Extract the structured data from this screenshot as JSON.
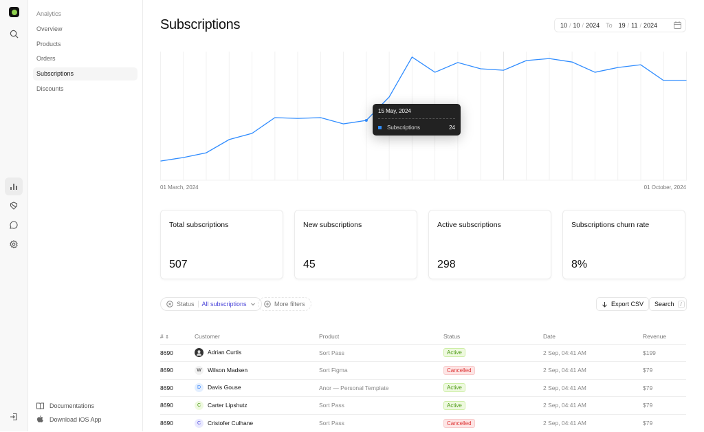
{
  "rail": {
    "icons": [
      "logo",
      "search-icon",
      "chart-icon",
      "badge-icon",
      "chat-icon",
      "gear-icon",
      "logout-icon"
    ]
  },
  "sidebar": {
    "section": "Analytics",
    "items": [
      {
        "label": "Overview"
      },
      {
        "label": "Products"
      },
      {
        "label": "Orders"
      },
      {
        "label": "Subscriptions",
        "active": true
      },
      {
        "label": "Discounts"
      }
    ],
    "footer": [
      {
        "label": "Documentations",
        "icon": "book-icon"
      },
      {
        "label": "Download iOS App",
        "icon": "apple-icon"
      }
    ]
  },
  "header": {
    "title": "Subscriptions",
    "date_from": {
      "d": "10",
      "m": "10",
      "y": "2024"
    },
    "to_label": "To",
    "date_to": {
      "d": "19",
      "m": "11",
      "y": "2024"
    }
  },
  "chart_data": {
    "type": "line",
    "x_start_label": "01 March, 2024",
    "x_end_label": "01 October, 2024",
    "grid": "vertical",
    "line_color": "#2f8cff",
    "series": [
      {
        "name": "Subscriptions",
        "values": [
          7.7,
          9.1,
          11,
          16.3,
          18.8,
          25.1,
          24.8,
          25.1,
          22.6,
          24,
          33.4,
          49.4,
          43.3,
          47.2,
          44.7,
          44.1,
          48,
          48.8,
          47.4,
          43.3,
          45.2,
          46.3,
          40,
          40
        ]
      }
    ],
    "tooltip": {
      "date": "15 May, 2024",
      "series": "Subscriptions",
      "value": "24",
      "index": 9
    }
  },
  "stats": [
    {
      "title": "Total subscriptions",
      "value": "507"
    },
    {
      "title": "New subscriptions",
      "value": "45"
    },
    {
      "title": "Active subscriptions",
      "value": "298"
    },
    {
      "title": "Subscriptions churn rate",
      "value": "8%"
    }
  ],
  "filters": {
    "status_label": "Status",
    "status_value": "All subscriptions",
    "more": "More filters",
    "export": "Export CSV",
    "search": "Search",
    "search_key": "/"
  },
  "table": {
    "headers": [
      "#",
      "Customer",
      "Product",
      "Status",
      "Date",
      "Revenue"
    ],
    "rows": [
      {
        "id": "8690",
        "initial": "",
        "avatar": "photo",
        "customer": "Adrian Curtis",
        "product": "Sort Pass",
        "status": "Active",
        "date": "2 Sep, 04:41 AM",
        "revenue": "$199"
      },
      {
        "id": "8690",
        "initial": "W",
        "avatar": "#f2f2f2|#222",
        "customer": "Wilson  Madsen",
        "product": "Sort Figma",
        "status": "Cancelled",
        "date": "2 Sep, 04:41 AM",
        "revenue": "$79"
      },
      {
        "id": "8690",
        "initial": "D",
        "avatar": "#e3efff|#2f7cf6",
        "customer": "Davis Gouse",
        "product": "Anor — Personal Template",
        "status": "Active",
        "date": "2 Sep, 04:41 AM",
        "revenue": "$79"
      },
      {
        "id": "8690",
        "initial": "C",
        "avatar": "#eef9df|#4c9a14",
        "customer": "Carter Lipshutz",
        "product": "Sort Pass",
        "status": "Active",
        "date": "2 Sep, 04:41 AM",
        "revenue": "$79"
      },
      {
        "id": "8690",
        "initial": "C",
        "avatar": "#e9e9ff|#4b45d9",
        "customer": "Cristofer Culhane",
        "product": "Sort Pass",
        "status": "Cancelled",
        "date": "2 Sep, 04:41 AM",
        "revenue": "$79"
      }
    ]
  }
}
